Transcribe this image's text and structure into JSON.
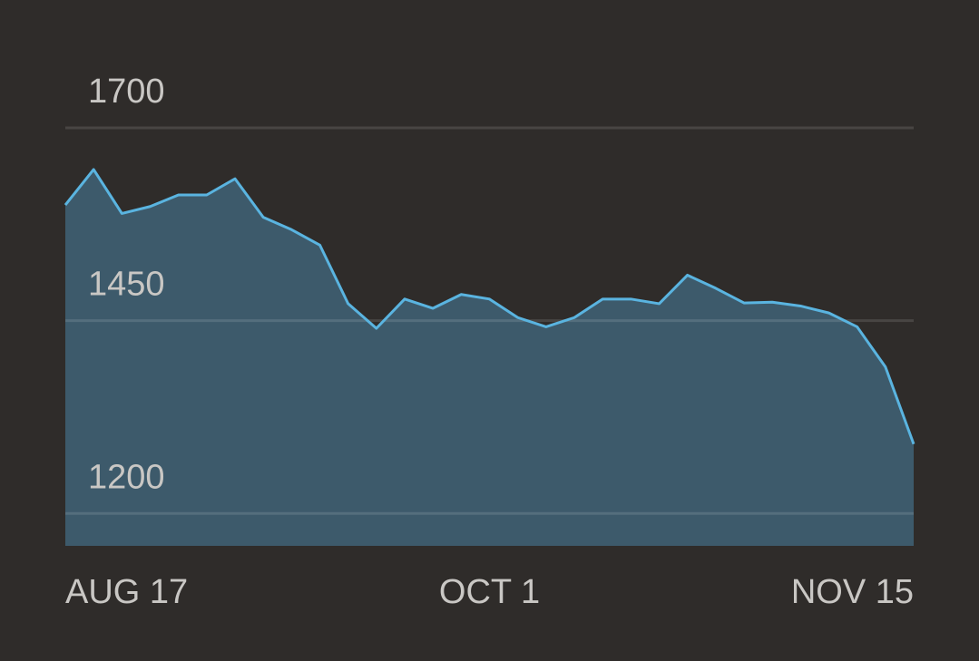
{
  "chart_data": {
    "type": "area",
    "categories": [
      "AUG 17",
      null,
      null,
      null,
      null,
      null,
      null,
      null,
      null,
      null,
      null,
      null,
      null,
      null,
      null,
      "OCT 1",
      null,
      null,
      null,
      null,
      null,
      null,
      null,
      null,
      null,
      null,
      null,
      null,
      null,
      null,
      "NOV 15"
    ],
    "values": [
      1600,
      1646,
      1589,
      1598,
      1613,
      1613,
      1634,
      1584,
      1568,
      1548,
      1472,
      1440,
      1478,
      1466,
      1484,
      1478,
      1454,
      1442,
      1454,
      1478,
      1478,
      1472,
      1509,
      1492,
      1473,
      1474,
      1469,
      1460,
      1442,
      1390,
      1290
    ],
    "color": "#5ab4e0",
    "fill": "#3d5a6b",
    "ylim": [
      1158,
      1700
    ],
    "yticks": [
      1200,
      1450,
      1700
    ],
    "grid": true
  }
}
